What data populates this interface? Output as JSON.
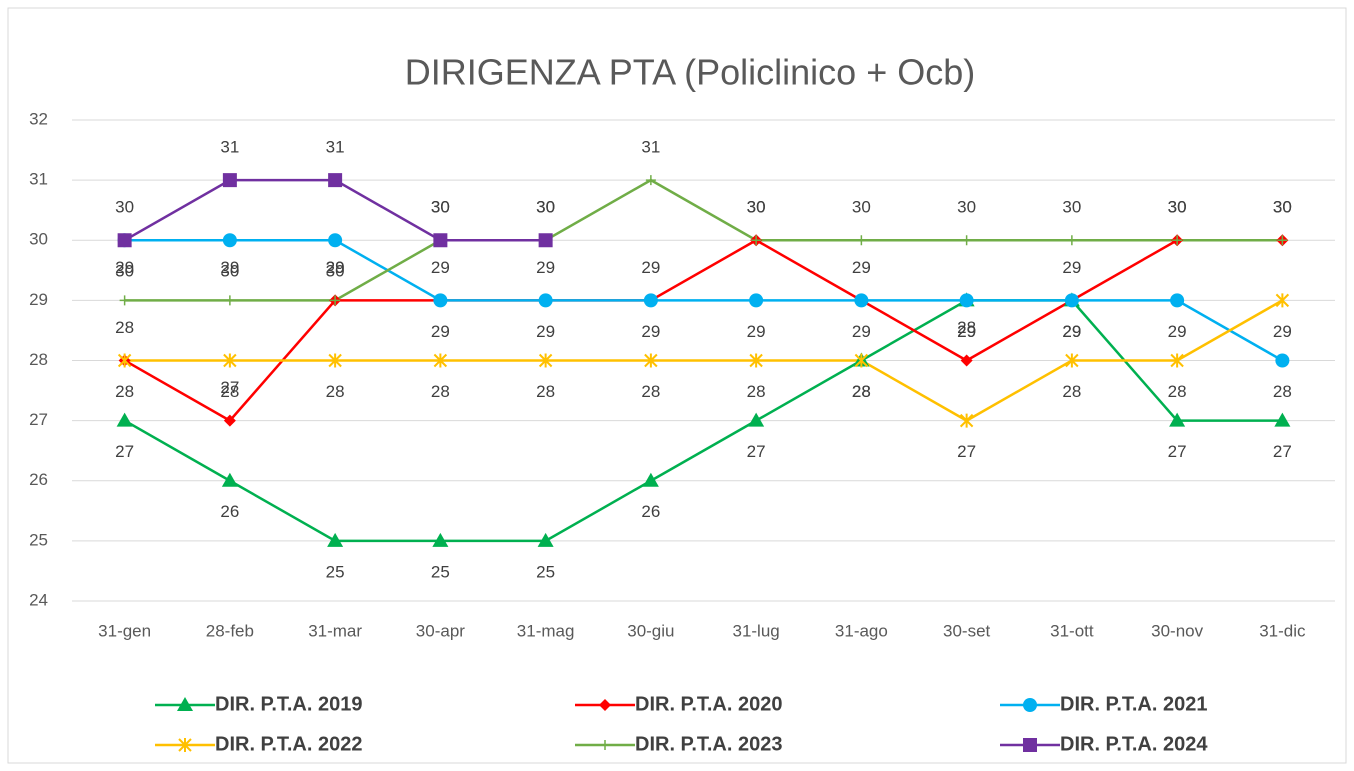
{
  "chart_data": {
    "type": "line",
    "title": "DIRIGENZA PTA (Policlinico + Ocb)",
    "categories": [
      "31-gen",
      "28-feb",
      "31-mar",
      "30-apr",
      "31-mag",
      "30-giu",
      "31-lug",
      "31-ago",
      "30-set",
      "31-ott",
      "30-nov",
      "31-dic"
    ],
    "ylim": [
      24,
      32
    ],
    "yticks": [
      24,
      25,
      26,
      27,
      28,
      29,
      30,
      31,
      32
    ],
    "grid": true,
    "series": [
      {
        "name": "DIR. P.T.A. 2019",
        "color": "#00b050",
        "marker": "triangle",
        "values": [
          27,
          26,
          25,
          25,
          25,
          26,
          27,
          28,
          29,
          29,
          27,
          27
        ]
      },
      {
        "name": "DIR. P.T.A. 2020",
        "color": "#ff0000",
        "marker": "diamond",
        "values": [
          28,
          27,
          29,
          29,
          29,
          29,
          30,
          29,
          28,
          29,
          30,
          30
        ]
      },
      {
        "name": "DIR. P.T.A. 2021",
        "color": "#00b0f0",
        "marker": "circle",
        "values": [
          30,
          30,
          30,
          29,
          29,
          29,
          29,
          29,
          29,
          29,
          29,
          28
        ]
      },
      {
        "name": "DIR. P.T.A. 2022",
        "color": "#ffc000",
        "marker": "star",
        "values": [
          28,
          28,
          28,
          28,
          28,
          28,
          28,
          28,
          27,
          28,
          28,
          29
        ]
      },
      {
        "name": "DIR. P.T.A. 2023",
        "color": "#70ad47",
        "marker": "plus",
        "values": [
          29,
          29,
          29,
          30,
          30,
          31,
          30,
          30,
          30,
          30,
          30,
          30
        ]
      },
      {
        "name": "DIR. P.T.A. 2024",
        "color": "#7030a0",
        "marker": "square",
        "values": [
          30,
          31,
          31,
          30,
          30,
          null,
          null,
          null,
          null,
          null,
          null,
          null
        ]
      }
    ]
  }
}
